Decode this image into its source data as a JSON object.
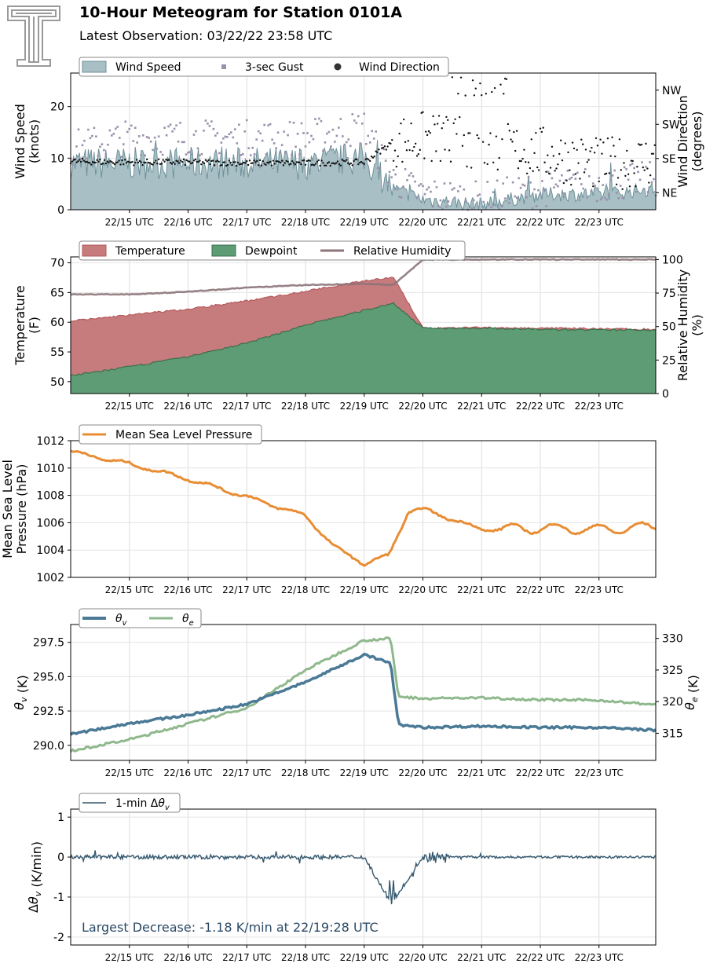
{
  "header": {
    "title": "10-Hour Meteogram for Station 0101A",
    "subtitle": "Latest Observation: 03/22/22 23:58 UTC"
  },
  "colors": {
    "wind_fill": "#a7bfc5",
    "wind_line": "#6f9099",
    "gust": "#9a90ab",
    "direction": "#111111",
    "temperature_fill": "#c67b7d",
    "temperature_line": "#b5595c",
    "dewpoint_fill": "#5e9c75",
    "dewpoint_line": "#3b6f4c",
    "rh": "#8c7479",
    "pressure": "#e88d34",
    "theta_v": "#4a7a95",
    "theta_e": "#8fb88c",
    "dtheta": "#34586e",
    "annotation": "#2b4a66"
  },
  "time_ticks": [
    "22/15 UTC",
    "22/16 UTC",
    "22/17 UTC",
    "22/18 UTC",
    "22/19 UTC",
    "22/20 UTC",
    "22/21 UTC",
    "22/22 UTC",
    "22/23 UTC"
  ],
  "chart_data": [
    {
      "type": "area",
      "legend": [
        "Wind Speed",
        "3-sec Gust",
        "Wind Direction"
      ],
      "ylabel": "Wind Speed\n(knots)",
      "y2label": "Wind Direction\n(degrees)",
      "ylim": [
        0,
        26.5
      ],
      "yticks": [
        0,
        10,
        20
      ],
      "y2ticks": [
        "NE",
        "SE",
        "SW",
        "NW"
      ],
      "y2lim": [
        0,
        360
      ],
      "x": [
        "22/14",
        "22/15",
        "22/16",
        "22/17",
        "22/18",
        "22/19",
        "22/19:30",
        "22/20",
        "22/21",
        "22/22",
        "22/23",
        "22/23:58"
      ],
      "series": [
        {
          "name": "Wind Speed",
          "values": [
            9,
            9,
            9,
            9,
            9,
            10,
            4,
            2,
            1,
            3,
            3,
            4
          ]
        },
        {
          "name": "3-sec Gust",
          "values": [
            12,
            14,
            14,
            14,
            14,
            16,
            6,
            3,
            2,
            4,
            5,
            6
          ]
        },
        {
          "name": "Wind Direction",
          "values": [
            127,
            125,
            125,
            123,
            123,
            125,
            180,
            190,
            170,
            150,
            120,
            130
          ]
        }
      ]
    },
    {
      "type": "area",
      "legend": [
        "Temperature",
        "Dewpoint",
        "Relative Humidity"
      ],
      "ylabel": "Temperature\n(F)",
      "y2label": "Relative Humidity\n(%)",
      "ylim": [
        48,
        71
      ],
      "yticks": [
        50,
        55,
        60,
        65,
        70
      ],
      "y2lim": [
        0,
        102
      ],
      "y2ticks": [
        0,
        25,
        50,
        75,
        100
      ],
      "x": [
        "22/14",
        "22/15",
        "22/16",
        "22/17",
        "22/18",
        "22/19",
        "22/19:30",
        "22/20",
        "22/21",
        "22/22",
        "22/23",
        "22/23:58"
      ],
      "series": [
        {
          "name": "Temperature",
          "values": [
            60.2,
            61.2,
            62.2,
            63.6,
            65.2,
            67.0,
            67.5,
            59.0,
            59.1,
            59.0,
            58.9,
            58.8
          ]
        },
        {
          "name": "Dewpoint",
          "values": [
            51.0,
            52.5,
            54.2,
            56.5,
            59.5,
            62.0,
            63.2,
            59.0,
            59.0,
            58.8,
            58.7,
            58.7
          ]
        },
        {
          "name": "Relative Humidity",
          "values": [
            74,
            74,
            76,
            79,
            81,
            82,
            81,
            100,
            100,
            100,
            100,
            100
          ]
        }
      ]
    },
    {
      "type": "line",
      "legend": [
        "Mean Sea Level Pressure"
      ],
      "ylabel": "Mean Sea Level\nPressure (hPa)",
      "ylim": [
        1002,
        1012
      ],
      "yticks": [
        1002,
        1004,
        1006,
        1008,
        1010,
        1012
      ],
      "x": [
        "22/14",
        "22/15",
        "22/16",
        "22/17",
        "22/18",
        "22/18:30",
        "22/19",
        "22/19:25",
        "22/19:45",
        "22/20",
        "22/21",
        "22/22",
        "22/23",
        "22/23:58"
      ],
      "series": [
        {
          "name": "Mean Sea Level Pressure",
          "values": [
            1011.2,
            1010.3,
            1009.2,
            1007.9,
            1006.5,
            1004.2,
            1003.0,
            1003.6,
            1006.8,
            1007.0,
            1005.5,
            1005.6,
            1005.5,
            1005.7
          ]
        }
      ]
    },
    {
      "type": "line",
      "legend": [
        "θv",
        "θe"
      ],
      "ylabel": "θv (K)",
      "y2label": "θe (K)",
      "ylim": [
        288.9,
        298.8
      ],
      "yticks": [
        290.0,
        292.5,
        295.0,
        297.5
      ],
      "y2lim": [
        310.7,
        332.2
      ],
      "y2ticks": [
        315,
        320,
        325,
        330
      ],
      "x": [
        "22/14",
        "22/15",
        "22/16",
        "22/17",
        "22/18",
        "22/19",
        "22/19:27",
        "22/19:35",
        "22/20",
        "22/21",
        "22/22",
        "22/23",
        "22/23:58"
      ],
      "series": [
        {
          "name": "θv",
          "values": [
            290.8,
            291.6,
            292.2,
            293.0,
            294.6,
            296.6,
            296.0,
            291.5,
            291.3,
            291.4,
            291.3,
            291.3,
            291.1
          ]
        },
        {
          "name": "θe",
          "values": [
            312.2,
            314.0,
            316.5,
            319.0,
            325.0,
            329.7,
            330.0,
            320.8,
            320.5,
            320.6,
            320.3,
            320.2,
            319.5
          ]
        }
      ]
    },
    {
      "type": "line",
      "legend": [
        "1-min Δθv"
      ],
      "ylabel": "Δθv (K/min)",
      "ylim": [
        -2.2,
        1.2
      ],
      "yticks": [
        -2,
        -1,
        0,
        1
      ],
      "x": [
        "22/14",
        "22/15",
        "22/16",
        "22/17",
        "22/18",
        "22/19",
        "22/19:28",
        "22/20",
        "22/21",
        "22/22",
        "22/23",
        "22/23:58"
      ],
      "series": [
        {
          "name": "1-min Δθv",
          "values": [
            0.0,
            0.0,
            0.0,
            0.0,
            0.0,
            0.0,
            -1.18,
            0.0,
            0.0,
            0.0,
            0.0,
            0.0
          ]
        }
      ],
      "annotations": [
        "Largest Decrease: -1.18 K/min at 22/19:28 UTC"
      ]
    }
  ]
}
